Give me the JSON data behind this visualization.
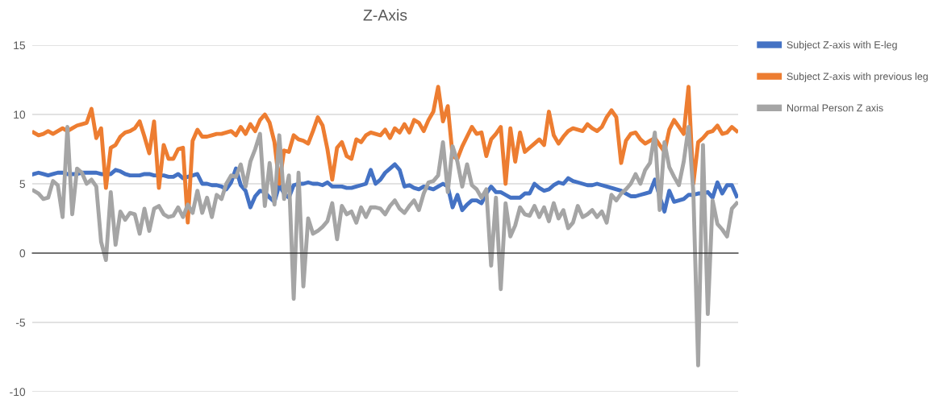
{
  "chart_data": {
    "type": "line",
    "title": "Z-Axis",
    "ylim": [
      -10,
      15
    ],
    "yticks": [
      -10,
      -5,
      0,
      5,
      10,
      15
    ],
    "tick_labels": "y",
    "grid": "y",
    "legend": "right",
    "marker": "none",
    "line_style": "solid",
    "categories": [
      null,
      null,
      null,
      null,
      null,
      null,
      null,
      null,
      null,
      null,
      null,
      null,
      null,
      null,
      null,
      null,
      null,
      null,
      null,
      null,
      null,
      null,
      null,
      null,
      null,
      null,
      null,
      null,
      null,
      null,
      null,
      null,
      null,
      null,
      null,
      null,
      null,
      null,
      null,
      null,
      null,
      null,
      null,
      null,
      null,
      null,
      null,
      null,
      null,
      null,
      null,
      null,
      null,
      null,
      null,
      null,
      null,
      null,
      null,
      null,
      null,
      null,
      null,
      null,
      null,
      null,
      null,
      null,
      null,
      null,
      null,
      null,
      null,
      null,
      null,
      null,
      null,
      null,
      null,
      null,
      null,
      null,
      null,
      null,
      null,
      null,
      null,
      null,
      null,
      null,
      null,
      null,
      null,
      null,
      null,
      null,
      null,
      null,
      null,
      null,
      null,
      null,
      null,
      null,
      null,
      null,
      null,
      null,
      null,
      null,
      null,
      null,
      null,
      null,
      null,
      null,
      null,
      null,
      null,
      null,
      null,
      null,
      null,
      null,
      null,
      null,
      null,
      null,
      null,
      null,
      null,
      null,
      null,
      null,
      null,
      null,
      null,
      null,
      null,
      null,
      null,
      null,
      null,
      null,
      null,
      null,
      null
    ],
    "series": [
      {
        "name": "Subject Z-axis with E-leg",
        "color": "#4472c4",
        "values": [
          5.7,
          5.8,
          5.7,
          5.6,
          5.7,
          5.8,
          5.8,
          5.7,
          5.7,
          5.7,
          5.8,
          5.8,
          5.8,
          5.8,
          5.7,
          5.7,
          5.7,
          6.0,
          5.9,
          5.7,
          5.6,
          5.6,
          5.6,
          5.7,
          5.7,
          5.6,
          5.6,
          5.6,
          5.5,
          5.5,
          5.7,
          5.4,
          5.5,
          5.6,
          5.7,
          5.0,
          5.0,
          4.9,
          4.9,
          4.8,
          4.6,
          5.1,
          6.1,
          4.9,
          4.5,
          3.3,
          4.1,
          4.5,
          4.4,
          4.0,
          3.7,
          4.9,
          4.3,
          4.0,
          4.9,
          5.0,
          5.0,
          5.1,
          5.0,
          5.0,
          4.9,
          5.1,
          4.8,
          4.8,
          4.8,
          4.7,
          4.7,
          4.8,
          4.9,
          5.0,
          6.0,
          5.0,
          5.3,
          5.8,
          6.1,
          6.4,
          6.0,
          4.8,
          4.9,
          4.7,
          4.6,
          4.8,
          4.7,
          4.6,
          4.8,
          5.0,
          4.8,
          3.3,
          4.2,
          3.1,
          3.5,
          3.8,
          3.8,
          3.6,
          4.3,
          4.8,
          4.4,
          4.4,
          4.2,
          4.0,
          4.0,
          4.0,
          4.3,
          4.3,
          5.0,
          4.7,
          4.5,
          4.6,
          4.9,
          5.1,
          5.0,
          5.4,
          5.2,
          5.1,
          5.0,
          4.9,
          4.9,
          5.0,
          4.9,
          4.8,
          4.7,
          4.6,
          4.5,
          4.3,
          4.1,
          4.1,
          4.2,
          4.3,
          4.4,
          5.3,
          4.1,
          3.0,
          4.5,
          3.7,
          3.8,
          3.9,
          4.2,
          4.2,
          4.3,
          4.3,
          4.4,
          4.0,
          5.1,
          4.3,
          4.9,
          4.9,
          4.1
        ]
      },
      {
        "name": "Subject Z-axis with previous leg",
        "color": "#ed7d31",
        "values": [
          8.7,
          8.5,
          8.6,
          8.8,
          8.6,
          8.8,
          9.0,
          8.8,
          9.0,
          9.2,
          9.3,
          9.4,
          10.4,
          8.3,
          9.0,
          4.7,
          7.6,
          7.8,
          8.4,
          8.7,
          8.8,
          9.0,
          9.5,
          8.4,
          7.2,
          9.5,
          4.7,
          7.8,
          6.8,
          6.8,
          7.5,
          7.6,
          2.2,
          8.1,
          8.9,
          8.4,
          8.4,
          8.5,
          8.6,
          8.6,
          8.7,
          8.8,
          8.5,
          9.1,
          8.6,
          9.3,
          8.8,
          9.6,
          10.0,
          9.4,
          8.0,
          5.0,
          7.4,
          7.3,
          8.5,
          8.2,
          8.1,
          7.9,
          8.8,
          9.8,
          9.2,
          7.5,
          5.3,
          7.6,
          8.0,
          7.0,
          6.8,
          8.2,
          8.0,
          8.5,
          8.7,
          8.6,
          8.5,
          8.9,
          8.3,
          9.0,
          8.7,
          9.3,
          8.7,
          9.6,
          9.4,
          8.8,
          9.6,
          10.2,
          12.0,
          9.5,
          10.6,
          7.0,
          6.8,
          7.7,
          8.4,
          9.1,
          8.6,
          8.7,
          7.0,
          8.2,
          8.6,
          9.1,
          5.0,
          9.0,
          6.6,
          8.7,
          7.3,
          7.6,
          7.9,
          8.2,
          7.8,
          10.2,
          8.5,
          7.9,
          8.4,
          8.8,
          9.0,
          8.9,
          8.8,
          9.3,
          9.0,
          8.8,
          9.1,
          9.8,
          10.3,
          9.8,
          6.5,
          8.1,
          8.6,
          8.7,
          8.2,
          7.9,
          8.1,
          8.3,
          7.8,
          7.3,
          8.9,
          9.6,
          9.1,
          8.6,
          12.0,
          5.0,
          8.0,
          8.3,
          8.7,
          8.8,
          9.2,
          8.6,
          8.7,
          9.1,
          8.8
        ]
      },
      {
        "name": "Normal Person Z axis",
        "color": "#a5a5a5",
        "values": [
          4.5,
          4.3,
          3.9,
          4.0,
          5.2,
          4.9,
          2.6,
          9.1,
          2.8,
          6.1,
          5.8,
          5.0,
          5.3,
          4.8,
          0.8,
          -0.5,
          4.4,
          0.6,
          3.0,
          2.4,
          2.9,
          2.8,
          1.4,
          3.2,
          1.6,
          3.2,
          3.4,
          2.8,
          2.6,
          2.7,
          3.3,
          2.6,
          3.5,
          2.9,
          4.5,
          2.9,
          4.0,
          2.6,
          4.2,
          3.9,
          5.0,
          5.6,
          5.5,
          6.4,
          4.8,
          6.6,
          7.5,
          8.6,
          3.4,
          6.5,
          3.5,
          8.5,
          3.9,
          5.6,
          -3.3,
          5.8,
          -2.4,
          2.5,
          1.4,
          1.6,
          1.9,
          2.3,
          3.6,
          1.0,
          3.4,
          2.8,
          3.0,
          2.2,
          3.3,
          2.6,
          3.3,
          3.3,
          3.2,
          2.8,
          3.4,
          3.8,
          3.2,
          2.9,
          3.4,
          3.8,
          3.1,
          4.3,
          5.1,
          5.2,
          5.6,
          8.0,
          4.4,
          7.7,
          6.6,
          4.8,
          6.4,
          4.9,
          4.6,
          4.0,
          4.6,
          -0.9,
          4.0,
          -2.6,
          3.6,
          1.2,
          2.0,
          3.3,
          2.8,
          2.7,
          3.4,
          2.6,
          3.3,
          2.3,
          3.6,
          2.5,
          3.1,
          1.8,
          2.2,
          3.4,
          2.6,
          2.8,
          3.1,
          2.6,
          3.0,
          2.2,
          4.2,
          3.8,
          4.3,
          4.6,
          5.0,
          5.7,
          5.0,
          6.0,
          6.5,
          8.7,
          3.1,
          8.0,
          6.2,
          5.5,
          4.9,
          6.6,
          9.1,
          4.4,
          -8.1,
          7.8,
          -4.4,
          3.8,
          2.1,
          1.7,
          1.2,
          3.2,
          3.6
        ]
      }
    ]
  }
}
